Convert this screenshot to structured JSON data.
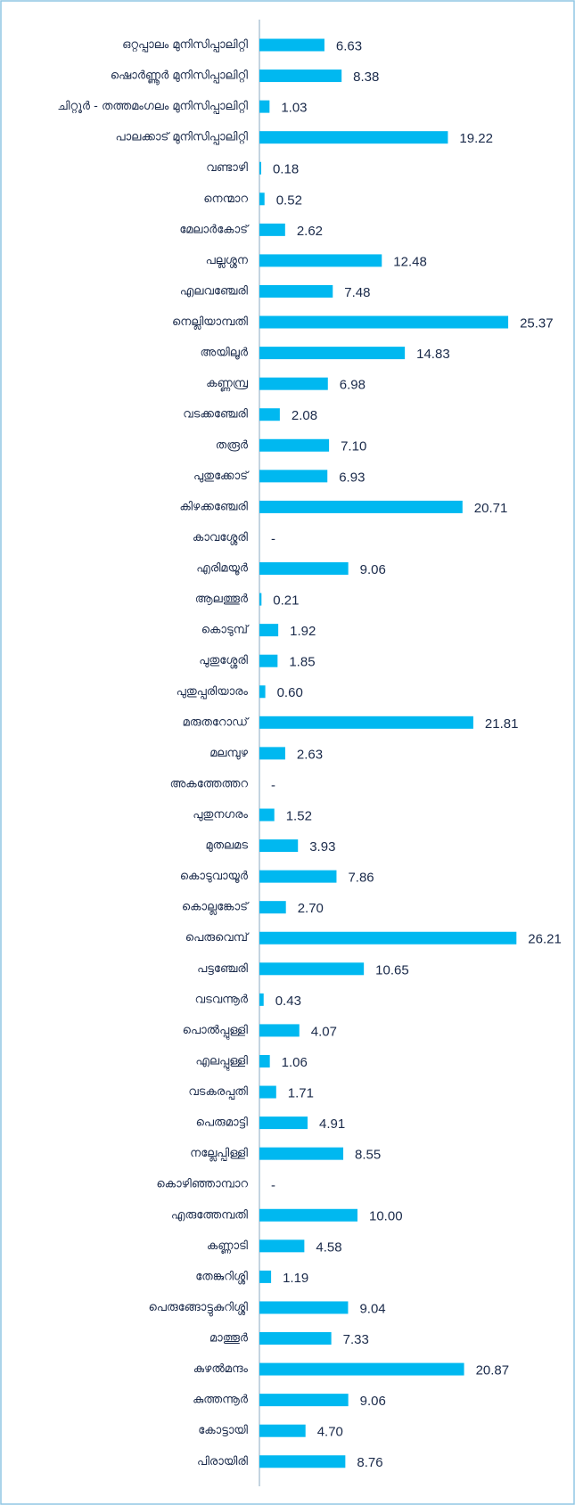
{
  "chart_data": {
    "type": "barh",
    "categories": [
      "ഒറ്റപ്പാലം  മുനിസിപ്പാലിറ്റി",
      "ഷൊർണ്ണൂർ  മുനിസിപ്പാലിറ്റി",
      "ചിറ്റൂർ - തത്തമംഗലം മുനിസിപ്പാലിറ്റി",
      "പാലക്കാട് മുനിസിപ്പാലിറ്റി",
      "വണ്ടാഴി",
      "നെന്മാറ",
      "മേലാർകോട്",
      "പല്ലശ്ശന",
      "എലവഞ്ചേരി",
      "നെല്ലിയാമ്പതി",
      "അയിലൂർ",
      "കണ്ണമ്പ്ര",
      "വടക്കഞ്ചേരി",
      "തരൂർ",
      "പുതുക്കോട്",
      "കിഴക്കഞ്ചേരി",
      "കാവശ്ശേരി",
      "എരിമയൂർ",
      "ആലത്തൂർ",
      "കൊടുമ്പ്",
      "പുതുശ്ശേരി",
      "പുതുപ്പരിയാരം",
      "മരുതറോഡ്",
      "മലമ്പുഴ",
      "അകത്തേത്തറ",
      "പുതുനഗരം",
      "മുതലമട",
      "കൊടുവായൂർ",
      "കൊല്ലങ്കോട്",
      "പെരുവെമ്പ്",
      "പട്ടഞ്ചേരി",
      "വടവന്നൂർ",
      "പൊൽപ്പുള്ളി",
      "എലപ്പുള്ളി",
      "വടകരപ്പതി",
      "പെരുമാട്ടി",
      "നല്ലേപ്പിള്ളി",
      "കൊഴിഞ്ഞാമ്പാറ",
      "എരുത്തേമ്പതി",
      "കണ്ണാടി",
      "തേങ്കുറിശ്ശി",
      "പെരുങ്ങോട്ടുകുറിശ്ശി",
      "മാത്തൂർ",
      "കുഴൽമന്ദം",
      "കുത്തന്നൂർ",
      "കോട്ടായി",
      "പിരായിരി"
    ],
    "values": [
      6.63,
      8.38,
      1.03,
      19.22,
      0.18,
      0.52,
      2.62,
      12.48,
      7.48,
      25.37,
      14.83,
      6.98,
      2.08,
      7.1,
      6.93,
      20.71,
      null,
      9.06,
      0.21,
      1.92,
      1.85,
      0.6,
      21.81,
      2.63,
      null,
      1.52,
      3.93,
      7.86,
      2.7,
      26.21,
      10.65,
      0.43,
      4.07,
      1.06,
      1.71,
      4.91,
      8.55,
      null,
      10,
      4.58,
      1.19,
      9.04,
      7.33,
      20.87,
      9.06,
      4.7,
      8.76
    ],
    "value_labels": [
      "6.63",
      "8.38",
      "1.03",
      "19.22",
      "0.18",
      "0.52",
      "2.62",
      "12.48",
      "7.48",
      "25.37",
      "14.83",
      "6.98",
      "2.08",
      "7.10",
      "6.93",
      "20.71",
      "-",
      "9.06",
      "0.21",
      "1.92",
      "1.85",
      "0.60",
      "21.81",
      "2.63",
      "-",
      "1.52",
      "3.93",
      "7.86",
      "2.70",
      "26.21",
      "10.65",
      "0.43",
      "4.07",
      "1.06",
      "1.71",
      "4.91",
      "8.55",
      "-",
      "10.00",
      "4.58",
      "1.19",
      "9.04",
      "7.33",
      "20.87",
      "9.06",
      "4.70",
      "8.76"
    ],
    "color": "#00b8f0"
  }
}
